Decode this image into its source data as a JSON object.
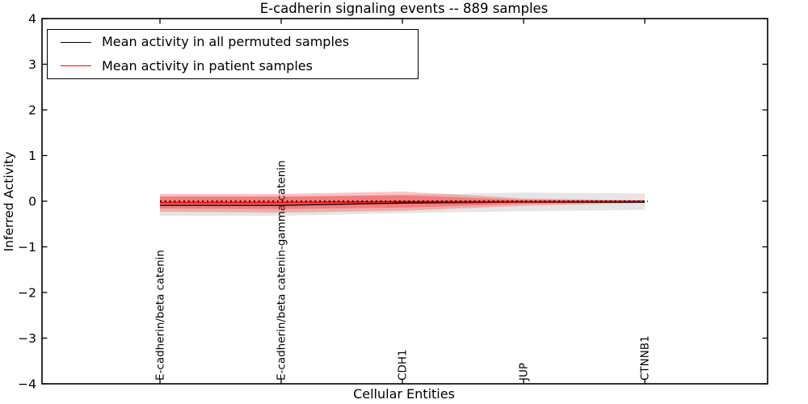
{
  "figure": {
    "background": "#ffffff"
  },
  "chart_data": {
    "type": "line",
    "title": "E-cadherin signaling events -- 889 samples",
    "xlabel": "Cellular Entities",
    "ylabel": "Inferred Activity",
    "ylim": [
      -4,
      4
    ],
    "ytick_values": [
      4,
      3,
      2,
      1,
      0,
      -1,
      -2,
      -3,
      -4
    ],
    "ytick_labels": [
      "4",
      "3",
      "2",
      "1",
      "0",
      "−1",
      "−2",
      "−3",
      "−4"
    ],
    "grid": false,
    "categories": [
      "E-cadherin/beta catenin",
      "E-cadherin/beta catenin-gamma catenin",
      "CDH1",
      "JUP",
      "CTNNB1"
    ],
    "series": [
      {
        "name": "Mean activity in all permuted samples",
        "color": "#000000",
        "line_style": "solid",
        "values": [
          -0.09,
          -0.09,
          -0.04,
          -0.02,
          -0.02
        ]
      },
      {
        "name": "Mean activity in patient samples",
        "color": "#ff0000",
        "line_style": "solid",
        "values": [
          -0.03,
          -0.03,
          -0.01,
          -0.01,
          0.0
        ]
      }
    ],
    "bands": [
      {
        "name": "permuted-samples-std-band",
        "fill": "rgba(0,0,0,0.10)",
        "upper": [
          0.11,
          0.1,
          0.14,
          0.19,
          0.17
        ],
        "lower": [
          -0.32,
          -0.32,
          -0.26,
          -0.22,
          -0.19
        ]
      },
      {
        "name": "patient-samples-std-band-outer",
        "fill": "rgba(255,0,0,0.24)",
        "upper": [
          0.16,
          0.16,
          0.21,
          0.06,
          0.02
        ],
        "lower": [
          -0.23,
          -0.25,
          -0.21,
          -0.1,
          -0.04
        ]
      },
      {
        "name": "patient-samples-std-band-inner",
        "fill": "rgba(255,0,0,0.28)",
        "upper": [
          0.1,
          0.1,
          0.13,
          0.03,
          0.01
        ],
        "lower": [
          -0.16,
          -0.17,
          -0.14,
          -0.06,
          -0.02
        ]
      }
    ],
    "zero_line": {
      "value": 0,
      "color": "#000000",
      "line_style": "dotted"
    },
    "legend": {
      "position": "upper left"
    }
  }
}
